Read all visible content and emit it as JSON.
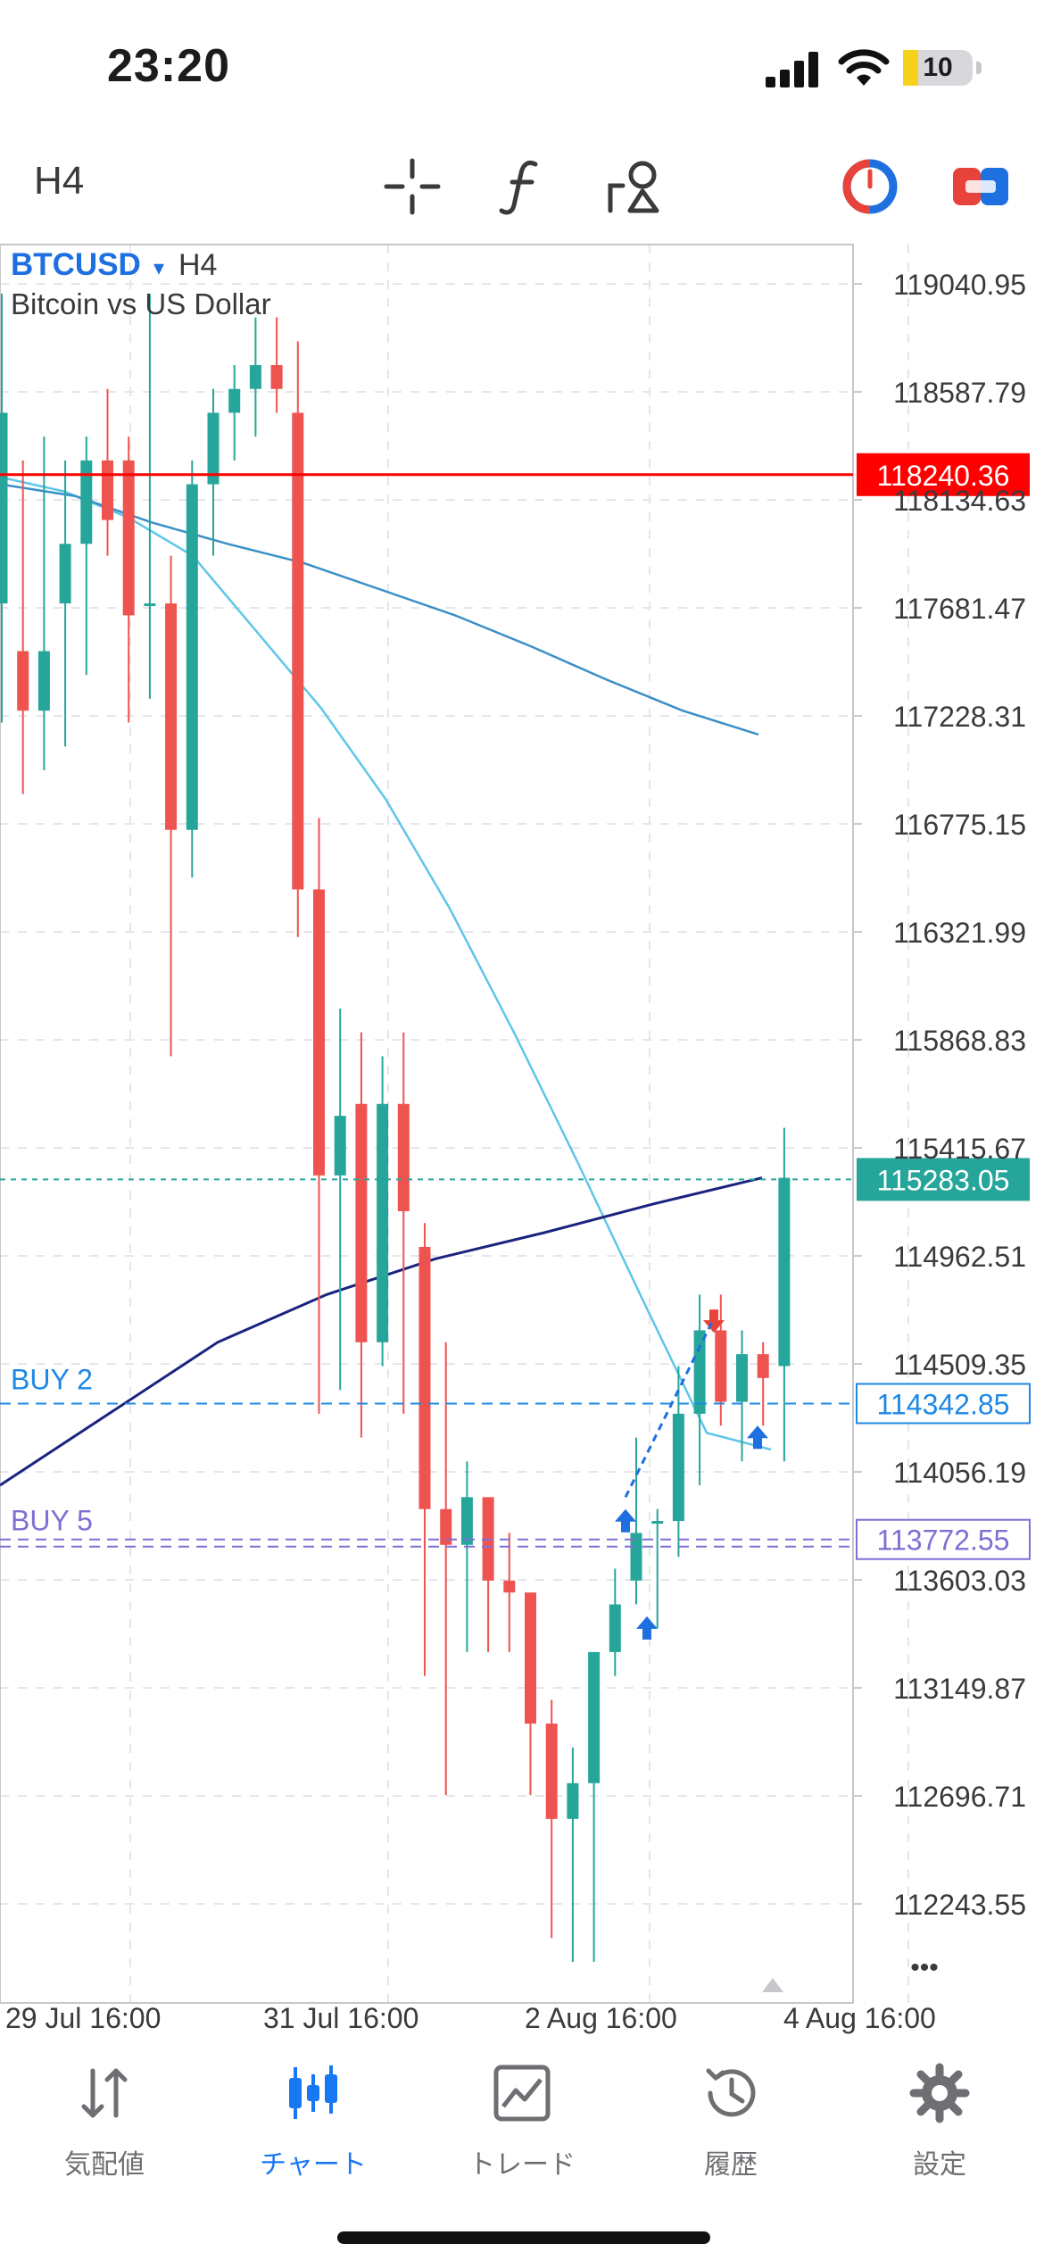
{
  "status_bar": {
    "time": "23:20",
    "battery_level": "10",
    "battery_fraction": 0.1
  },
  "toolbar": {
    "timeframe": "H4",
    "icons": [
      "crosshair-icon",
      "function-icon",
      "objects-icon",
      "trading-icon",
      "one-click-trading-icon"
    ]
  },
  "chart": {
    "symbol": "BTCUSD",
    "dropdown_glyph": "▾",
    "timeframe": "H4",
    "description": "Bitcoin vs US Dollar",
    "price_labels": [
      "119040.95",
      "118587.79",
      "118134.63",
      "117681.47",
      "117228.31",
      "116775.15",
      "116321.99",
      "115868.83",
      "115415.67",
      "114962.51",
      "114509.35",
      "114056.19",
      "113603.03",
      "113149.87",
      "112696.71",
      "112243.55"
    ],
    "time_labels": [
      "29 Jul 16:00",
      "31 Jul 16:00",
      "2 Aug 16:00",
      "4 Aug 16:00"
    ],
    "lines": {
      "red_level": {
        "value": "118240.36",
        "color": "#ff0000"
      },
      "current_price": {
        "value": "115283.05",
        "color": "#26a69a"
      },
      "buy2": {
        "label": "BUY 2",
        "value": "114342.85",
        "color": "#1e88e5"
      },
      "buy5": {
        "label": "BUY 5",
        "value": "113772.55",
        "color": "#7f6fd4"
      }
    },
    "more_glyph": "•••",
    "bull_color": "#26a69a",
    "bear_color": "#ef5350"
  },
  "chart_data": {
    "type": "candlestick",
    "symbol": "BTCUSD",
    "timeframe": "H4",
    "candles": [
      {
        "o": 117700,
        "h": 119000,
        "l": 117200,
        "c": 118500
      },
      {
        "o": 117500,
        "h": 118300,
        "l": 116900,
        "c": 117250
      },
      {
        "o": 117250,
        "h": 118400,
        "l": 117000,
        "c": 117500
      },
      {
        "o": 117700,
        "h": 118300,
        "l": 117100,
        "c": 117950
      },
      {
        "o": 117950,
        "h": 118400,
        "l": 117400,
        "c": 118300
      },
      {
        "o": 118300,
        "h": 118600,
        "l": 117900,
        "c": 118050
      },
      {
        "o": 118300,
        "h": 118400,
        "l": 117200,
        "c": 117650
      },
      {
        "o": 117700,
        "h": 119000,
        "l": 117300,
        "c": 117700
      },
      {
        "o": 117700,
        "h": 117900,
        "l": 115800,
        "c": 116750
      },
      {
        "o": 116750,
        "h": 118300,
        "l": 116550,
        "c": 118200
      },
      {
        "o": 118200,
        "h": 118600,
        "l": 117900,
        "c": 118500
      },
      {
        "o": 118500,
        "h": 118700,
        "l": 118300,
        "c": 118600
      },
      {
        "o": 118600,
        "h": 118900,
        "l": 118400,
        "c": 118700
      },
      {
        "o": 118700,
        "h": 118900,
        "l": 118500,
        "c": 118600
      },
      {
        "o": 118500,
        "h": 118800,
        "l": 116300,
        "c": 116500
      },
      {
        "o": 116500,
        "h": 116800,
        "l": 114300,
        "c": 115300
      },
      {
        "o": 115300,
        "h": 116000,
        "l": 114400,
        "c": 115550
      },
      {
        "o": 115600,
        "h": 115900,
        "l": 114200,
        "c": 114600
      },
      {
        "o": 114600,
        "h": 115800,
        "l": 114500,
        "c": 115600
      },
      {
        "o": 115600,
        "h": 115900,
        "l": 114300,
        "c": 115150
      },
      {
        "o": 115000,
        "h": 115100,
        "l": 113200,
        "c": 113900
      },
      {
        "o": 113900,
        "h": 114600,
        "l": 112700,
        "c": 113750
      },
      {
        "o": 113750,
        "h": 114100,
        "l": 113300,
        "c": 113950
      },
      {
        "o": 113950,
        "h": 113950,
        "l": 113300,
        "c": 113600
      },
      {
        "o": 113600,
        "h": 113800,
        "l": 113300,
        "c": 113550
      },
      {
        "o": 113550,
        "h": 113500,
        "l": 112700,
        "c": 113000
      },
      {
        "o": 113000,
        "h": 113100,
        "l": 112100,
        "c": 112600
      },
      {
        "o": 112600,
        "h": 112900,
        "l": 112000,
        "c": 112750
      },
      {
        "o": 112750,
        "h": 113300,
        "l": 112000,
        "c": 113300
      },
      {
        "o": 113300,
        "h": 113650,
        "l": 113200,
        "c": 113500
      },
      {
        "o": 113600,
        "h": 114200,
        "l": 113500,
        "c": 113800
      },
      {
        "o": 113850,
        "h": 113900,
        "l": 113400,
        "c": 113850
      },
      {
        "o": 113850,
        "h": 114500,
        "l": 113700,
        "c": 114300
      },
      {
        "o": 114300,
        "h": 114800,
        "l": 114000,
        "c": 114650
      },
      {
        "o": 114650,
        "h": 114800,
        "l": 114250,
        "c": 114350
      },
      {
        "o": 114350,
        "h": 114650,
        "l": 114100,
        "c": 114550
      },
      {
        "o": 114550,
        "h": 114600,
        "l": 114250,
        "c": 114450
      },
      {
        "o": 114500,
        "h": 115500,
        "l": 114100,
        "c": 115290
      }
    ],
    "moving_averages": [
      {
        "color": "#5ec6e8",
        "values": [
          118230,
          118170,
          118060,
          117900,
          117580,
          117260,
          116880,
          116420,
          115900,
          115350,
          114780,
          114220,
          114150
        ]
      },
      {
        "color": "#3b8fc7",
        "values": [
          118200,
          118150,
          118040,
          117950,
          117870,
          117760,
          117650,
          117520,
          117380,
          117250,
          117150
        ]
      },
      {
        "color": "#1a237e",
        "values": [
          114000,
          114300,
          114600,
          114800,
          114950,
          115060,
          115180,
          115290
        ]
      }
    ]
  }
}
